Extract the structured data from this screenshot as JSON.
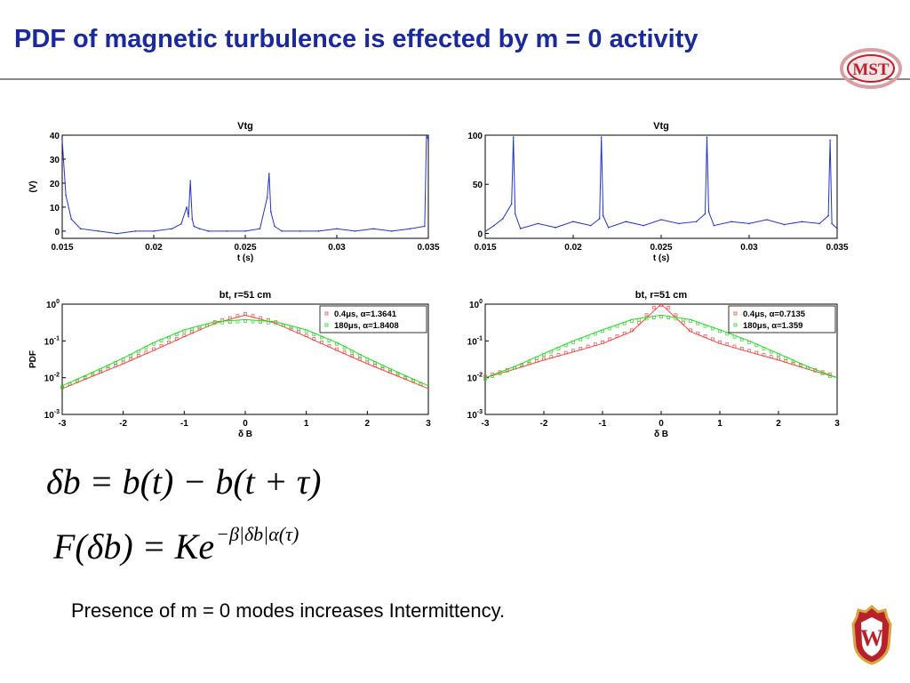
{
  "slide": {
    "title": "PDF of magnetic turbulence is effected by m = 0 activity",
    "equation_1": "δb = b(t) − b(t + τ)",
    "equation_2_base": "F(δb) = Ke",
    "equation_2_exponent": "−β|δb|α(τ)",
    "caption": "Presence of m = 0 modes increases Intermittency.",
    "logo_text": "MST",
    "crest_text": "W"
  },
  "colors": {
    "title": "#1a2a9c",
    "trace": "#2233cc",
    "series_red": "#ff4444",
    "series_green": "#22dd22",
    "logo_red": "#c0202a"
  },
  "chart_data": [
    {
      "id": "vtg-left",
      "type": "line",
      "title": "Vtg",
      "xlabel": "t (s)",
      "ylabel": "(V)",
      "xlim": [
        0.015,
        0.035
      ],
      "ylim": [
        -3,
        40
      ],
      "xticks": [
        "0.015",
        "0.02",
        "0.025",
        "0.03",
        "0.035"
      ],
      "yticks": [
        "0",
        "10",
        "20",
        "30",
        "40"
      ],
      "x": [
        0.015,
        0.0152,
        0.0155,
        0.016,
        0.017,
        0.018,
        0.019,
        0.02,
        0.021,
        0.0215,
        0.0218,
        0.0219,
        0.022,
        0.0221,
        0.0222,
        0.0225,
        0.023,
        0.024,
        0.025,
        0.0258,
        0.0262,
        0.0263,
        0.0264,
        0.0266,
        0.027,
        0.028,
        0.029,
        0.03,
        0.031,
        0.032,
        0.033,
        0.034,
        0.0348,
        0.0349,
        0.035
      ],
      "y": [
        38,
        15,
        5,
        1,
        0,
        -1,
        0,
        0,
        1,
        3,
        10,
        6,
        21,
        5,
        2,
        1,
        0,
        0,
        0,
        1,
        14,
        24,
        8,
        2,
        0,
        0,
        0,
        1,
        0,
        1,
        0,
        1,
        2,
        40,
        38
      ]
    },
    {
      "id": "vtg-right",
      "type": "line",
      "title": "Vtg",
      "xlabel": "t (s)",
      "ylabel": "",
      "xlim": [
        0.015,
        0.035
      ],
      "ylim": [
        -5,
        100
      ],
      "xticks": [
        "0.015",
        "0.02",
        "0.025",
        "0.03",
        "0.035"
      ],
      "yticks": [
        "0",
        "50",
        "100"
      ],
      "x": [
        0.015,
        0.0155,
        0.016,
        0.0165,
        0.0166,
        0.0167,
        0.017,
        0.018,
        0.019,
        0.02,
        0.021,
        0.0215,
        0.0216,
        0.0217,
        0.022,
        0.023,
        0.024,
        0.025,
        0.026,
        0.027,
        0.0275,
        0.0276,
        0.0277,
        0.028,
        0.029,
        0.03,
        0.031,
        0.032,
        0.033,
        0.034,
        0.0345,
        0.0346,
        0.0347,
        0.035
      ],
      "y": [
        2,
        8,
        15,
        30,
        98,
        20,
        5,
        10,
        6,
        12,
        8,
        15,
        98,
        18,
        6,
        12,
        8,
        14,
        10,
        12,
        20,
        98,
        22,
        8,
        12,
        10,
        14,
        9,
        12,
        10,
        18,
        95,
        10,
        5
      ]
    },
    {
      "id": "pdf-left",
      "type": "scatter",
      "title": "bt, r=51 cm",
      "xlabel": "δ B",
      "ylabel": "PDF",
      "xlim": [
        -3,
        3
      ],
      "ylim": [
        0.001,
        1
      ],
      "yscale": "log",
      "xticks": [
        "-3",
        "-2",
        "-1",
        "0",
        "1",
        "2",
        "3"
      ],
      "yticks": [
        "10^-3",
        "10^-2",
        "10^-1",
        "10^0"
      ],
      "legend_position": "top-right",
      "x": [
        -3,
        -2.5,
        -2,
        -1.5,
        -1,
        -0.5,
        0,
        0.5,
        1,
        1.5,
        2,
        2.5,
        3
      ],
      "series": [
        {
          "name": "0.4μs, α=1.3641",
          "color": "#ff4444",
          "values": [
            0.005,
            0.011,
            0.024,
            0.055,
            0.13,
            0.3,
            0.5,
            0.3,
            0.13,
            0.055,
            0.024,
            0.011,
            0.005
          ]
        },
        {
          "name": "180μs, α=1.8408",
          "color": "#22dd22",
          "values": [
            0.006,
            0.014,
            0.034,
            0.09,
            0.2,
            0.33,
            0.38,
            0.33,
            0.2,
            0.09,
            0.034,
            0.014,
            0.006
          ]
        }
      ]
    },
    {
      "id": "pdf-right",
      "type": "scatter",
      "title": "bt, r=51 cm",
      "xlabel": "δ B",
      "ylabel": "",
      "xlim": [
        -3,
        3
      ],
      "ylim": [
        0.001,
        1
      ],
      "yscale": "log",
      "xticks": [
        "-3",
        "-2",
        "-1",
        "0",
        "1",
        "2",
        "3"
      ],
      "yticks": [
        "10^-3",
        "10^-2",
        "10^-1",
        "10^0"
      ],
      "legend_position": "top-right",
      "x": [
        -3,
        -2.5,
        -2,
        -1.5,
        -1,
        -0.5,
        0,
        0.5,
        1,
        1.5,
        2,
        2.5,
        3
      ],
      "series": [
        {
          "name": "0.4μs, α=0.7135",
          "color": "#ff4444",
          "values": [
            0.01,
            0.017,
            0.03,
            0.05,
            0.085,
            0.18,
            1.2,
            0.18,
            0.085,
            0.05,
            0.03,
            0.017,
            0.01
          ]
        },
        {
          "name": "180μs, α=1.359",
          "color": "#22dd22",
          "values": [
            0.01,
            0.02,
            0.045,
            0.1,
            0.2,
            0.38,
            0.5,
            0.38,
            0.2,
            0.1,
            0.045,
            0.02,
            0.01
          ]
        }
      ]
    }
  ]
}
